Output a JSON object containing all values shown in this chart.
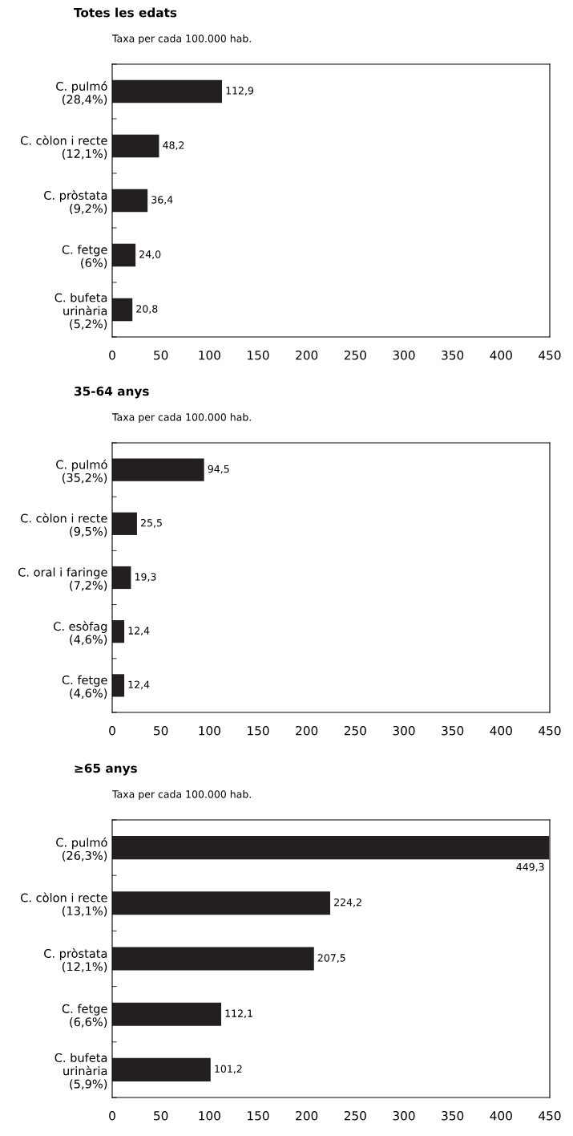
{
  "chart_data": [
    {
      "type": "bar",
      "orientation": "horizontal",
      "title": "Totes les edats",
      "subtitle": "Taxa per cada 100.000 hab.",
      "categories": [
        "C. pulmó\n(28,4%)",
        "C. còlon i recte\n(12,1%)",
        "C. pròstata\n(9,2%)",
        "C. fetge\n(6%)",
        "C. bufeta\nurinària\n(5,2%)"
      ],
      "values": [
        112.9,
        48.2,
        36.4,
        24.0,
        20.8
      ],
      "value_labels": [
        "112,9",
        "48,2",
        "36,4",
        "24,0",
        "20,8"
      ],
      "color": "#231f20",
      "xlim": [
        0,
        450
      ],
      "xticks": [
        0,
        50,
        100,
        150,
        200,
        250,
        300,
        350,
        400,
        450
      ],
      "grid": false
    },
    {
      "type": "bar",
      "orientation": "horizontal",
      "title": "35-64 anys",
      "subtitle": "Taxa per cada 100.000 hab.",
      "categories": [
        "C. pulmó\n(35,2%)",
        "C. còlon i recte\n(9,5%)",
        "C. oral i faringe\n(7,2%)",
        "C. esòfag\n(4,6%)",
        "C. fetge\n(4,6%)"
      ],
      "values": [
        94.5,
        25.5,
        19.3,
        12.4,
        12.4
      ],
      "value_labels": [
        "94,5",
        "25,5",
        "19,3",
        "12,4",
        "12,4"
      ],
      "color": "#231f20",
      "xlim": [
        0,
        450
      ],
      "xticks": [
        0,
        50,
        100,
        150,
        200,
        250,
        300,
        350,
        400,
        450
      ],
      "grid": false
    },
    {
      "type": "bar",
      "orientation": "horizontal",
      "title": "≥65 anys",
      "subtitle": "Taxa per cada 100.000 hab.",
      "categories": [
        "C. pulmó\n(26,3%)",
        "C. còlon i recte\n(13,1%)",
        "C. pròstata\n(12,1%)",
        "C. fetge\n(6,6%)",
        "C. bufeta\nurinària\n(5,9%)"
      ],
      "values": [
        449.3,
        224.2,
        207.5,
        112.1,
        101.2
      ],
      "value_labels": [
        "449,3",
        "224,2",
        "207,5",
        "112,1",
        "101,2"
      ],
      "color": "#231f20",
      "xlim": [
        0,
        450
      ],
      "xticks": [
        0,
        50,
        100,
        150,
        200,
        250,
        300,
        350,
        400,
        450
      ],
      "grid": false
    }
  ]
}
